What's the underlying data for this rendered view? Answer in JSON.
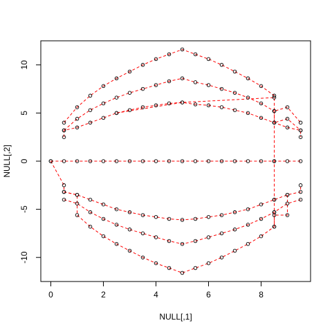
{
  "chart_data": {
    "type": "scatter",
    "title": "",
    "xlabel": "NULL[,1]",
    "ylabel": "NULL[,2]",
    "xlim": [
      -0.38,
      9.88
    ],
    "ylim": [
      -12.5,
      12.5
    ],
    "xticks": [
      0,
      2,
      4,
      6,
      8
    ],
    "yticks": [
      -10,
      -5,
      0,
      5,
      10
    ],
    "grid": false,
    "legend": "none",
    "line_color": "#ff0000",
    "point_color": "#000000",
    "series": [
      {
        "points": [
          [
            0.5,
            4.0
          ],
          [
            1.0,
            5.6
          ],
          [
            1.5,
            6.8
          ],
          [
            2.0,
            7.8
          ],
          [
            2.5,
            8.6
          ],
          [
            3.0,
            9.3
          ],
          [
            3.5,
            10.0
          ],
          [
            4.0,
            10.6
          ],
          [
            4.5,
            11.1
          ],
          [
            5.0,
            11.6
          ],
          [
            5.5,
            11.1
          ],
          [
            6.0,
            10.6
          ],
          [
            6.5,
            10.0
          ],
          [
            7.0,
            9.3
          ],
          [
            7.5,
            8.6
          ],
          [
            8.0,
            7.8
          ],
          [
            8.5,
            6.8
          ],
          [
            8.5,
            5.2
          ],
          [
            9.0,
            5.6
          ],
          [
            9.5,
            4.0
          ]
        ]
      },
      {
        "points": [
          [
            0.5,
            3.2
          ],
          [
            1.0,
            4.4
          ],
          [
            1.5,
            5.3
          ],
          [
            2.0,
            6.0
          ],
          [
            2.5,
            6.6
          ],
          [
            3.0,
            7.1
          ],
          [
            3.5,
            7.5
          ],
          [
            4.0,
            7.9
          ],
          [
            4.5,
            8.3
          ],
          [
            5.0,
            8.6
          ],
          [
            5.5,
            8.2
          ],
          [
            6.0,
            7.9
          ],
          [
            6.5,
            7.5
          ],
          [
            7.0,
            7.1
          ],
          [
            7.5,
            6.6
          ],
          [
            8.0,
            6.0
          ],
          [
            8.5,
            5.2
          ],
          [
            8.5,
            4.0
          ],
          [
            9.0,
            4.4
          ],
          [
            9.5,
            3.2
          ]
        ]
      },
      {
        "points": [
          [
            0.5,
            2.5
          ],
          [
            0.5,
            3.2
          ],
          [
            1.0,
            3.5
          ],
          [
            1.5,
            4.0
          ],
          [
            2.0,
            4.5
          ],
          [
            2.5,
            5.0
          ],
          [
            3.0,
            5.3
          ],
          [
            3.5,
            5.6
          ],
          [
            4.0,
            5.8
          ],
          [
            4.5,
            6.0
          ],
          [
            5.0,
            6.1
          ],
          [
            5.5,
            5.9
          ],
          [
            6.0,
            5.8
          ],
          [
            6.5,
            5.6
          ],
          [
            7.0,
            5.3
          ],
          [
            7.5,
            5.0
          ],
          [
            8.0,
            4.5
          ],
          [
            8.5,
            4.0
          ],
          [
            9.0,
            3.5
          ],
          [
            9.5,
            3.2
          ],
          [
            9.5,
            2.5
          ]
        ]
      },
      {
        "points": [
          [
            0.0,
            0.0
          ],
          [
            0.5,
            0.0
          ],
          [
            1.0,
            0.0
          ],
          [
            1.5,
            0.0
          ],
          [
            2.0,
            0.0
          ],
          [
            2.5,
            0.0
          ],
          [
            3.0,
            0.0
          ],
          [
            3.5,
            0.0
          ],
          [
            4.0,
            0.0
          ],
          [
            4.5,
            0.0
          ],
          [
            5.0,
            0.0
          ],
          [
            5.5,
            0.0
          ],
          [
            6.0,
            0.0
          ],
          [
            6.5,
            0.0
          ],
          [
            7.0,
            0.0
          ],
          [
            7.5,
            0.0
          ],
          [
            8.0,
            0.0
          ],
          [
            8.5,
            0.0
          ],
          [
            9.0,
            0.0
          ],
          [
            9.5,
            0.0
          ]
        ]
      },
      {
        "points": [
          [
            0.0,
            0.0
          ],
          [
            0.5,
            -2.5
          ],
          [
            0.5,
            -3.2
          ],
          [
            1.0,
            -3.5
          ],
          [
            1.5,
            -4.0
          ],
          [
            2.0,
            -4.5
          ],
          [
            2.5,
            -5.0
          ],
          [
            3.0,
            -5.3
          ],
          [
            3.5,
            -5.6
          ],
          [
            4.0,
            -5.8
          ],
          [
            4.5,
            -6.0
          ],
          [
            5.0,
            -6.1
          ],
          [
            5.5,
            -6.0
          ],
          [
            6.0,
            -5.8
          ],
          [
            6.5,
            -5.6
          ],
          [
            7.0,
            -5.3
          ],
          [
            7.5,
            -5.0
          ],
          [
            8.0,
            -4.5
          ],
          [
            8.5,
            -4.0
          ],
          [
            9.0,
            -3.5
          ],
          [
            9.5,
            -3.2
          ],
          [
            9.5,
            -2.5
          ]
        ]
      },
      {
        "points": [
          [
            0.5,
            -4.0
          ],
          [
            1.0,
            -4.4
          ],
          [
            1.5,
            -5.3
          ],
          [
            2.0,
            -6.0
          ],
          [
            2.5,
            -6.6
          ],
          [
            3.0,
            -7.1
          ],
          [
            3.5,
            -7.5
          ],
          [
            4.0,
            -7.9
          ],
          [
            4.5,
            -8.3
          ],
          [
            5.0,
            -8.6
          ],
          [
            5.5,
            -8.3
          ],
          [
            6.0,
            -7.9
          ],
          [
            6.5,
            -7.5
          ],
          [
            7.0,
            -7.1
          ],
          [
            7.5,
            -6.6
          ],
          [
            8.0,
            -6.0
          ],
          [
            8.5,
            -5.3
          ],
          [
            9.0,
            -4.4
          ],
          [
            9.5,
            -4.0
          ]
        ]
      },
      {
        "points": [
          [
            0.5,
            -3.2
          ],
          [
            1.0,
            -3.5
          ],
          [
            1.0,
            -5.6
          ],
          [
            1.5,
            -6.8
          ],
          [
            2.0,
            -7.8
          ],
          [
            2.5,
            -8.6
          ],
          [
            3.0,
            -9.3
          ],
          [
            3.5,
            -10.0
          ],
          [
            4.0,
            -10.6
          ],
          [
            4.5,
            -11.1
          ],
          [
            5.0,
            -11.6
          ],
          [
            5.5,
            -11.1
          ],
          [
            6.0,
            -10.6
          ],
          [
            6.5,
            -10.0
          ],
          [
            7.0,
            -9.3
          ],
          [
            7.5,
            -8.6
          ],
          [
            8.0,
            -7.8
          ],
          [
            8.5,
            -6.8
          ],
          [
            8.5,
            -5.6
          ],
          [
            9.0,
            -5.6
          ],
          [
            9.0,
            -3.5
          ]
        ]
      },
      {
        "points": [
          [
            8.5,
            5.2
          ],
          [
            8.5,
            4.0
          ],
          [
            8.5,
            0.0
          ],
          [
            8.5,
            -4.0
          ],
          [
            8.5,
            -5.3
          ],
          [
            8.5,
            -6.8
          ]
        ]
      },
      {
        "points": [
          [
            2.5,
            5.0
          ],
          [
            5.0,
            6.1
          ],
          [
            8.5,
            6.6
          ]
        ]
      }
    ]
  }
}
